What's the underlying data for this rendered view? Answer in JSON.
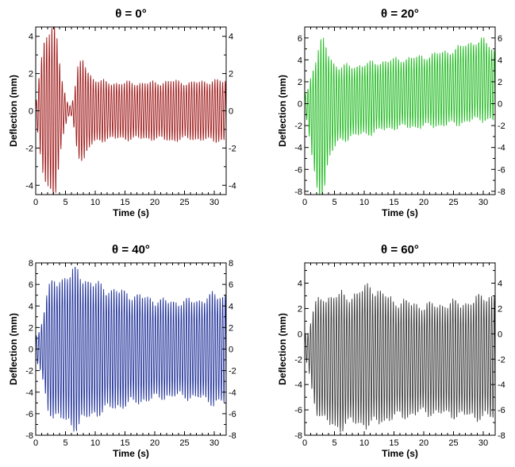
{
  "chart_data": [
    {
      "type": "line",
      "title": "θ = 0°",
      "xlabel": "Time (s)",
      "ylabel": "Deflection (mm)",
      "xlim": [
        0,
        32
      ],
      "ylim": [
        -4.5,
        4.5
      ],
      "xticks": [
        0,
        5,
        10,
        15,
        20,
        25,
        30
      ],
      "yticks": [
        -4,
        -2,
        0,
        2,
        4
      ],
      "color": "#a01c1c",
      "series": [
        {
          "name": "deflection",
          "x": [
            0,
            0.5,
            1.0,
            1.5,
            2.0,
            2.5,
            3.0,
            3.5,
            4.0,
            4.5,
            5.0,
            5.5,
            6.0,
            6.5,
            7.0,
            7.5,
            8.0,
            8.5,
            9.0,
            9.5,
            10,
            11,
            12,
            13,
            14,
            15,
            17,
            20,
            23,
            26,
            29,
            32
          ],
          "amplitude": [
            0.3,
            1.6,
            2.8,
            4.0,
            4.5,
            4.5,
            4.5,
            4.0,
            2.6,
            1.5,
            0.8,
            0.3,
            0.3,
            1.1,
            2.2,
            2.5,
            2.7,
            2.3,
            2.0,
            1.8,
            1.7,
            1.6,
            1.5,
            1.5,
            1.5,
            1.5,
            1.5,
            1.5,
            1.6,
            1.5,
            1.6,
            1.6
          ],
          "offset": 0,
          "frequency_hz": 2.3
        }
      ]
    },
    {
      "type": "line",
      "title": "θ = 20°",
      "xlabel": "Time (s)",
      "ylabel": "Deflection (mm)",
      "xlim": [
        0,
        32
      ],
      "ylim": [
        -8.3,
        7.0
      ],
      "xticks": [
        0,
        5,
        10,
        15,
        20,
        25,
        30
      ],
      "yticks": [
        -8,
        -6,
        -4,
        -2,
        0,
        2,
        4,
        6
      ],
      "color": "#22bb22",
      "series": [
        {
          "name": "deflection",
          "x": [
            0,
            0.5,
            1.0,
            1.5,
            2.0,
            2.5,
            3.0,
            3.5,
            4.0,
            5.0,
            6.0,
            8.0,
            10,
            15,
            20,
            25,
            28,
            30,
            32
          ],
          "amplitude": [
            0.8,
            1.5,
            3.2,
            5.0,
            6.2,
            6.8,
            6.8,
            6.2,
            4.8,
            3.8,
            3.4,
            3.2,
            3.2,
            3.1,
            3.2,
            3.4,
            3.6,
            3.6,
            3.2
          ],
          "offset": [
            0,
            -0.3,
            -0.8,
            -1.3,
            -1.7,
            -1.5,
            -1.2,
            -0.8,
            -0.3,
            -0.2,
            0.0,
            0.2,
            0.4,
            0.9,
            1.1,
            1.5,
            2.0,
            2.2,
            1.6
          ],
          "frequency_hz": 2.3
        }
      ]
    },
    {
      "type": "line",
      "title": "θ = 40°",
      "xlabel": "Time (s)",
      "ylabel": "Deflection (mm)",
      "xlim": [
        0,
        32
      ],
      "ylim": [
        -8.0,
        8.0
      ],
      "xticks": [
        0,
        5,
        10,
        15,
        20,
        25,
        30
      ],
      "yticks": [
        -8,
        -6,
        -4,
        -2,
        0,
        2,
        4,
        6,
        8
      ],
      "color": "#22339a",
      "series": [
        {
          "name": "deflection",
          "x": [
            0,
            0.5,
            1.0,
            1.5,
            2.0,
            3.0,
            4.0,
            5.0,
            6.0,
            7.0,
            8.0,
            10,
            12,
            15,
            18,
            20,
            22,
            25,
            28,
            30,
            32
          ],
          "amplitude": [
            1.2,
            1.5,
            2.5,
            4.0,
            5.4,
            6.2,
            6.4,
            6.8,
            7.0,
            7.2,
            6.6,
            6.0,
            5.6,
            5.2,
            4.8,
            4.6,
            4.4,
            4.4,
            4.6,
            5.0,
            5.0
          ],
          "offset": 0,
          "frequency_hz": 2.3
        }
      ]
    },
    {
      "type": "line",
      "title": "θ =  60°",
      "xlabel": "Time (s)",
      "ylabel": "Deflection (mm)",
      "xlim": [
        0,
        32
      ],
      "ylim": [
        -8.0,
        5.6
      ],
      "xticks": [
        0,
        5,
        10,
        15,
        20,
        25,
        30
      ],
      "yticks": [
        -8,
        -6,
        -4,
        -2,
        0,
        2,
        4
      ],
      "color": "#3c3c3c",
      "series": [
        {
          "name": "deflection",
          "x": [
            0,
            0.5,
            1.0,
            1.5,
            2.0,
            3.0,
            4.0,
            5.0,
            6.0,
            8.0,
            10,
            11,
            12,
            15,
            18,
            20,
            25,
            28,
            30,
            32
          ],
          "amplitude": [
            1.0,
            1.2,
            2.5,
            3.6,
            4.2,
            4.8,
            5.0,
            5.2,
            5.2,
            5.0,
            5.3,
            5.6,
            5.2,
            4.6,
            4.4,
            4.2,
            4.4,
            4.5,
            4.8,
            4.8
          ],
          "offset": [
            -1.0,
            -1.2,
            -1.5,
            -1.6,
            -1.8,
            -1.9,
            -2.1,
            -2.2,
            -2.2,
            -2.0,
            -1.8,
            -1.7,
            -1.8,
            -2.0,
            -2.0,
            -2.0,
            -2.0,
            -2.0,
            -1.8,
            -1.8
          ],
          "frequency_hz": 2.3
        }
      ]
    }
  ]
}
